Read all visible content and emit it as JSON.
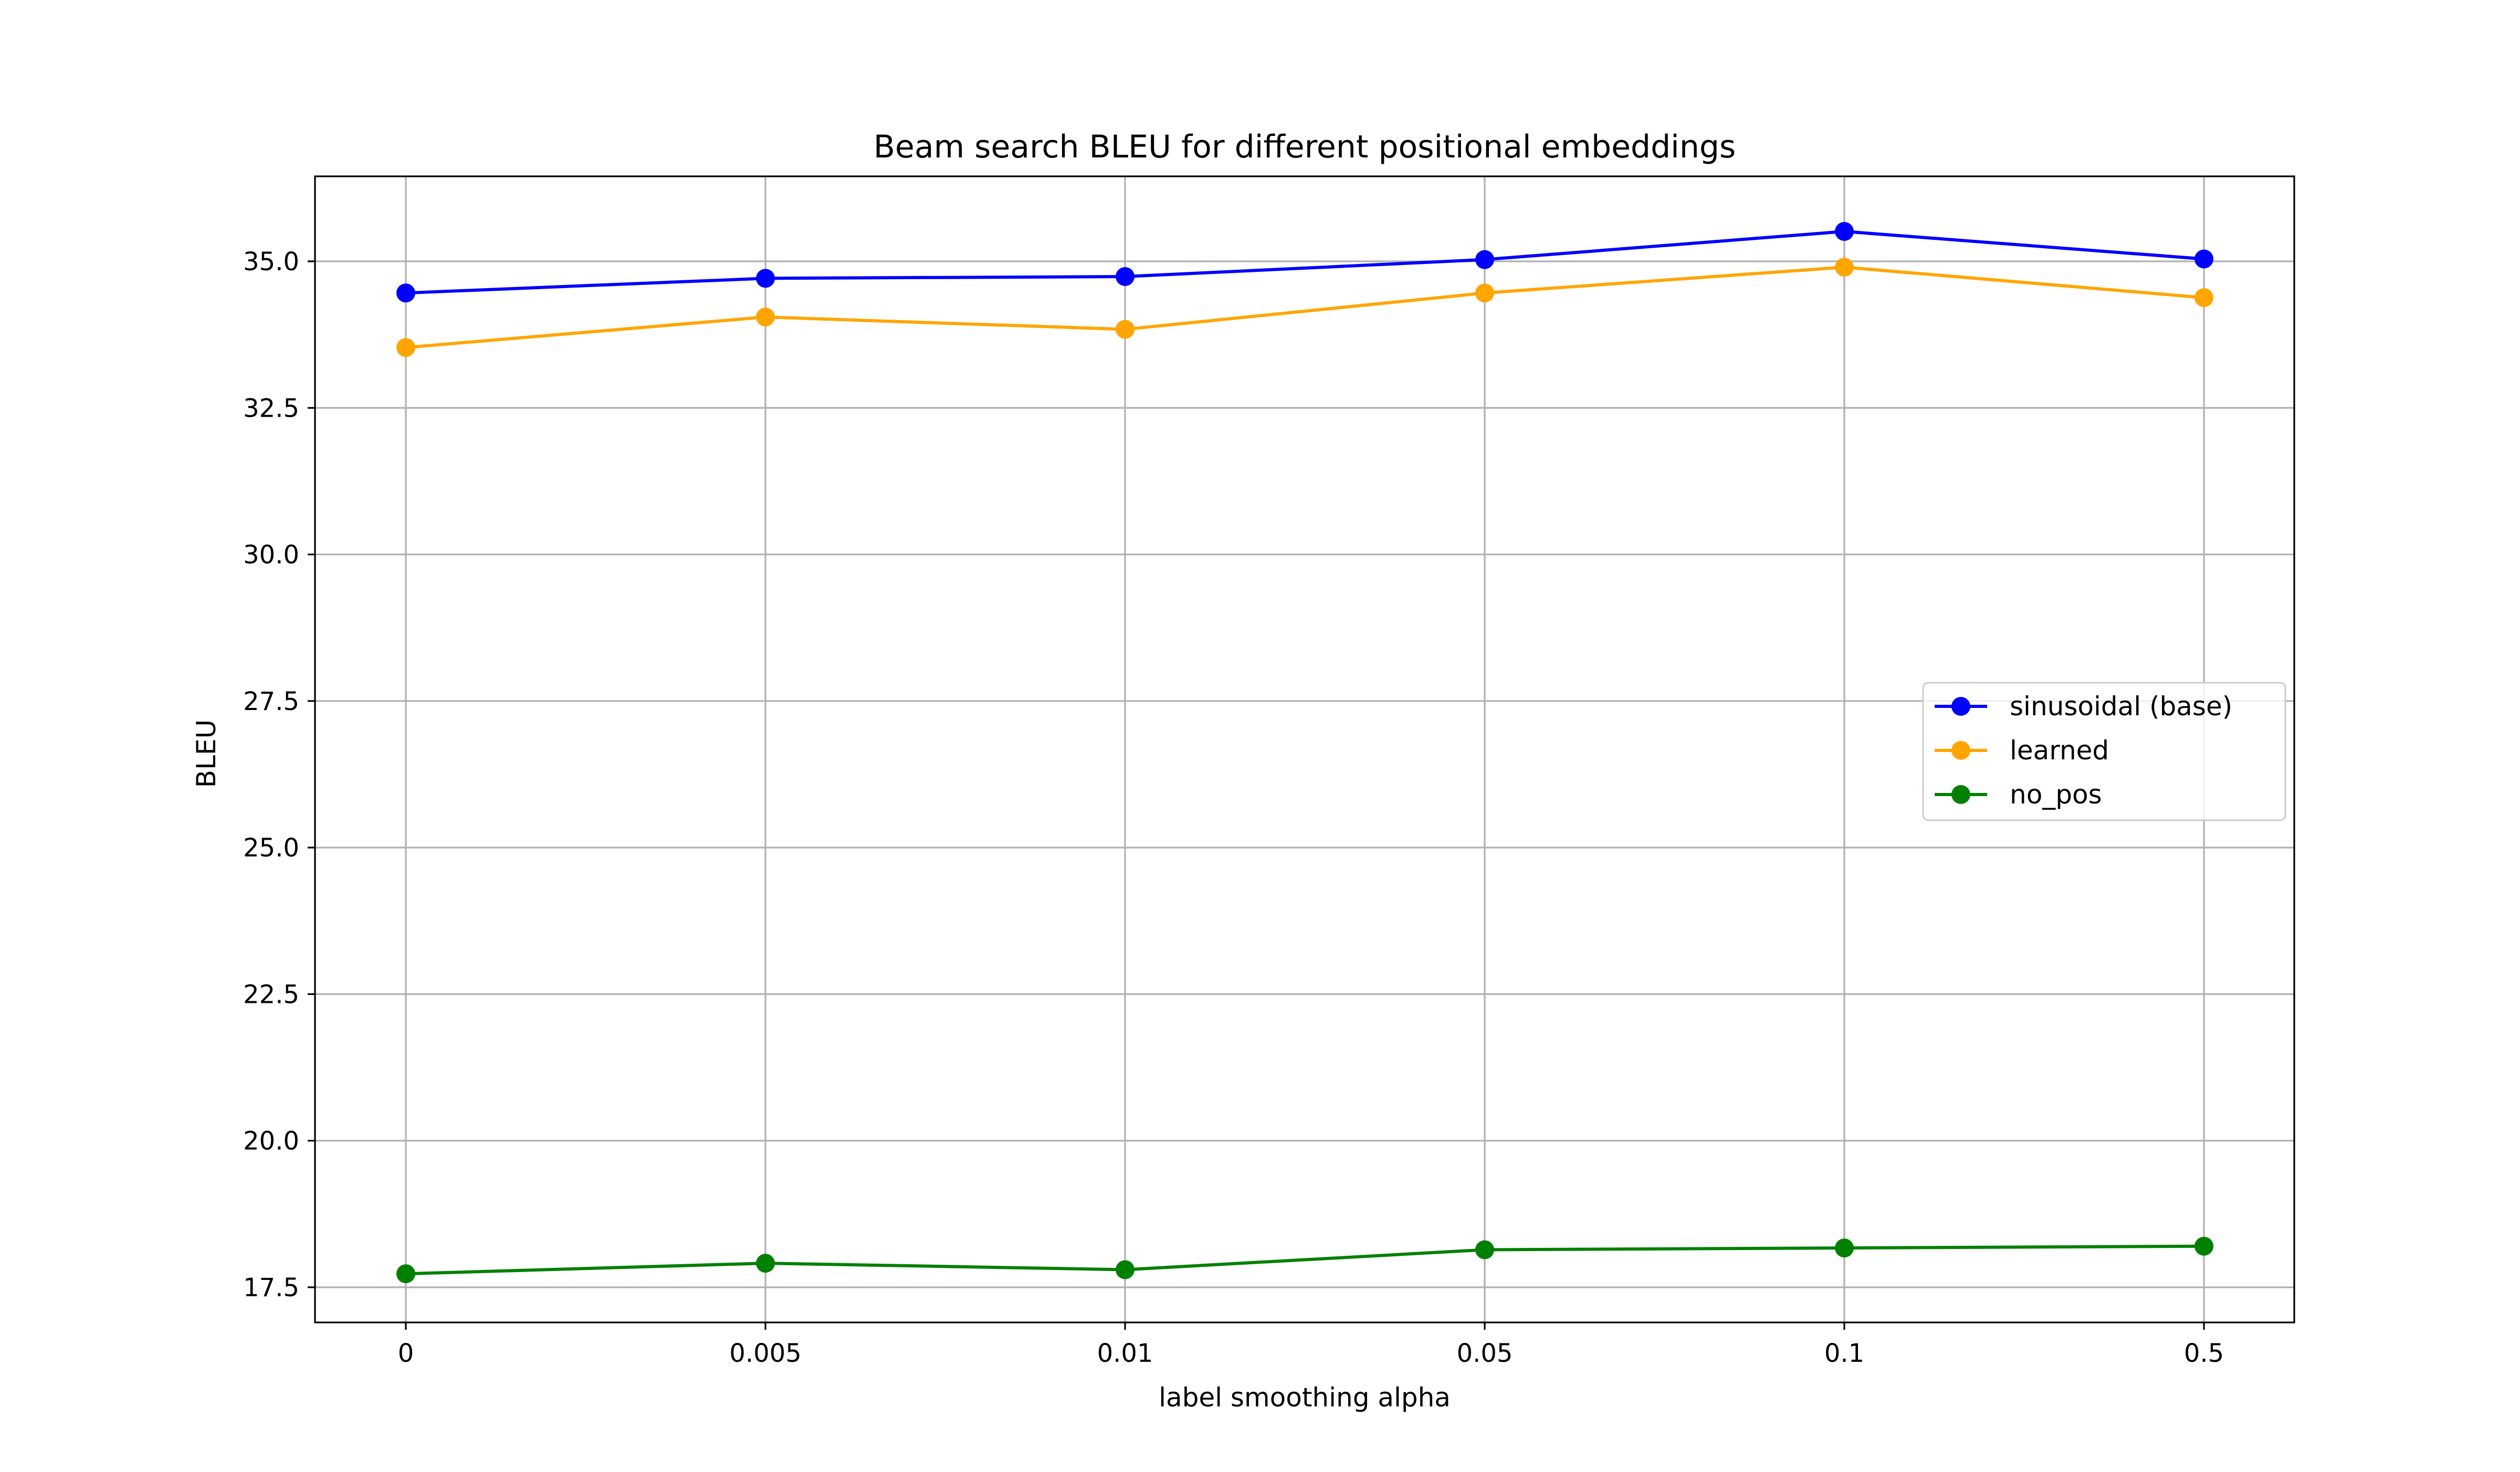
{
  "chart_data": {
    "type": "line",
    "title": "Beam search BLEU for different positional embeddings",
    "xlabel": "label smoothing alpha",
    "ylabel": "BLEU",
    "categories": [
      "0",
      "0.005",
      "0.01",
      "0.05",
      "0.1",
      "0.5"
    ],
    "ylim": [
      16.9,
      36.45
    ],
    "yticks": [
      17.5,
      20.0,
      22.5,
      25.0,
      27.5,
      30.0,
      32.5,
      35.0
    ],
    "ytick_labels": [
      "17.5",
      "20.0",
      "22.5",
      "25.0",
      "27.5",
      "30.0",
      "32.5",
      "35.0"
    ],
    "grid": true,
    "legend_position": "center-right",
    "series": [
      {
        "name": "sinusoidal (base)",
        "color": "#0000ff",
        "marker": "circle",
        "values": [
          34.46,
          34.71,
          34.74,
          35.03,
          35.51,
          35.04
        ]
      },
      {
        "name": "learned",
        "color": "#ffa500",
        "marker": "circle",
        "values": [
          33.53,
          34.05,
          33.84,
          34.46,
          34.9,
          34.38
        ]
      },
      {
        "name": "no_pos",
        "color": "#008000",
        "marker": "circle",
        "values": [
          17.73,
          17.91,
          17.8,
          18.14,
          18.17,
          18.2
        ]
      }
    ]
  }
}
